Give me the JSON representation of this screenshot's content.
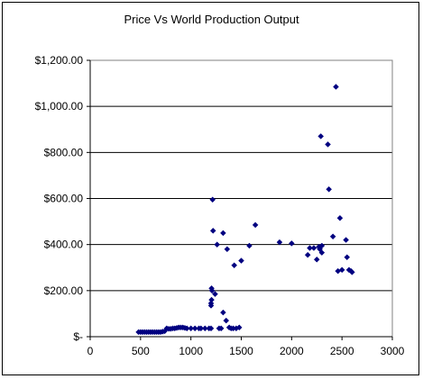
{
  "chart_data": {
    "type": "scatter",
    "title": "Price Vs World Production Output",
    "xlabel": "",
    "ylabel": "",
    "xlim": [
      0,
      3000
    ],
    "ylim": [
      0,
      1200
    ],
    "x_ticks": [
      0,
      500,
      1000,
      1500,
      2000,
      2500,
      3000
    ],
    "y_ticks": [
      0,
      200,
      400,
      600,
      800,
      1000,
      1200
    ],
    "y_tick_labels": [
      "$-",
      "$200.00",
      "$400.00",
      "$600.00",
      "$800.00",
      "$1,000.00",
      "$1,200.00"
    ],
    "grid": "horizontal major gridlines",
    "legend": "none",
    "marker_color": "#000080",
    "points": [
      [
        480,
        20
      ],
      [
        500,
        20
      ],
      [
        520,
        20
      ],
      [
        540,
        20
      ],
      [
        560,
        20
      ],
      [
        580,
        20
      ],
      [
        600,
        20
      ],
      [
        620,
        20
      ],
      [
        640,
        20
      ],
      [
        660,
        20
      ],
      [
        680,
        20
      ],
      [
        700,
        20
      ],
      [
        720,
        22
      ],
      [
        740,
        24
      ],
      [
        760,
        36
      ],
      [
        780,
        34
      ],
      [
        800,
        34
      ],
      [
        820,
        36
      ],
      [
        840,
        36
      ],
      [
        860,
        38
      ],
      [
        880,
        40
      ],
      [
        900,
        40
      ],
      [
        920,
        40
      ],
      [
        940,
        38
      ],
      [
        960,
        36
      ],
      [
        1000,
        36
      ],
      [
        1040,
        36
      ],
      [
        1080,
        36
      ],
      [
        1100,
        36
      ],
      [
        1140,
        36
      ],
      [
        1180,
        36
      ],
      [
        1200,
        36
      ],
      [
        1200,
        135
      ],
      [
        1200,
        145
      ],
      [
        1205,
        160
      ],
      [
        1205,
        210
      ],
      [
        1210,
        200
      ],
      [
        1220,
        460
      ],
      [
        1215,
        595
      ],
      [
        1240,
        185
      ],
      [
        1260,
        400
      ],
      [
        1280,
        36
      ],
      [
        1300,
        36
      ],
      [
        1320,
        105
      ],
      [
        1320,
        450
      ],
      [
        1350,
        70
      ],
      [
        1360,
        380
      ],
      [
        1380,
        40
      ],
      [
        1400,
        36
      ],
      [
        1420,
        36
      ],
      [
        1430,
        310
      ],
      [
        1450,
        36
      ],
      [
        1480,
        40
      ],
      [
        1500,
        330
      ],
      [
        1580,
        395
      ],
      [
        1640,
        485
      ],
      [
        1880,
        410
      ],
      [
        2000,
        405
      ],
      [
        2160,
        355
      ],
      [
        2180,
        385
      ],
      [
        2220,
        385
      ],
      [
        2250,
        335
      ],
      [
        2270,
        390
      ],
      [
        2280,
        380
      ],
      [
        2300,
        365
      ],
      [
        2300,
        395
      ],
      [
        2290,
        870
      ],
      [
        2360,
        835
      ],
      [
        2370,
        640
      ],
      [
        2410,
        435
      ],
      [
        2440,
        1085
      ],
      [
        2460,
        285
      ],
      [
        2480,
        515
      ],
      [
        2500,
        290
      ],
      [
        2540,
        420
      ],
      [
        2550,
        345
      ],
      [
        2570,
        290
      ],
      [
        2590,
        285
      ],
      [
        2600,
        280
      ]
    ]
  }
}
